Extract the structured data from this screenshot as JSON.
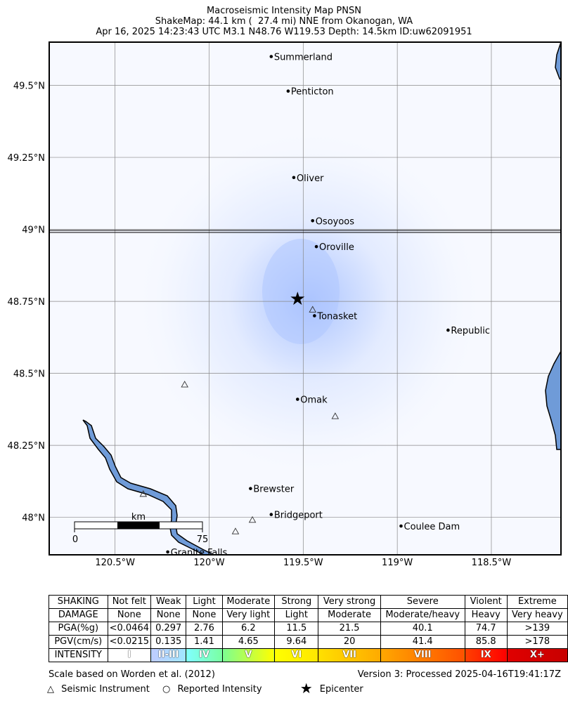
{
  "header": {
    "line1": "Macroseismic Intensity Map PNSN",
    "line2": "ShakeMap: 44.1 km (  27.4 mi) NNE from Okanogan, WA",
    "line3": "Apr 16, 2025 14:23:43 UTC M3.1 N48.76 W119.53 Depth: 14.5km ID:uw62091951"
  },
  "map": {
    "bounds": {
      "lon_min": -120.85,
      "lon_max": -118.13,
      "lat_min": 47.87,
      "lat_max": 49.65
    },
    "lat_ticks": [
      {
        "value": 49.5,
        "label": "49.5°N"
      },
      {
        "value": 49.25,
        "label": "49.25°N"
      },
      {
        "value": 49.0,
        "label": "49°N"
      },
      {
        "value": 48.75,
        "label": "48.75°N"
      },
      {
        "value": 48.5,
        "label": "48.5°N"
      },
      {
        "value": 48.25,
        "label": "48.25°N"
      },
      {
        "value": 48.0,
        "label": "48°N"
      }
    ],
    "lon_ticks": [
      {
        "value": -120.5,
        "label": "120.5°W"
      },
      {
        "value": -120.0,
        "label": "120°W"
      },
      {
        "value": -119.5,
        "label": "119.5°W"
      },
      {
        "value": -119.0,
        "label": "119°W"
      },
      {
        "value": -118.5,
        "label": "118.5°W"
      }
    ],
    "cities": [
      {
        "name": "Summerland",
        "lon": -119.67,
        "lat": 49.6
      },
      {
        "name": "Penticton",
        "lon": -119.58,
        "lat": 49.48
      },
      {
        "name": "Oliver",
        "lon": -119.55,
        "lat": 49.18
      },
      {
        "name": "Osoyoos",
        "lon": -119.45,
        "lat": 49.03
      },
      {
        "name": "Oroville",
        "lon": -119.43,
        "lat": 48.94
      },
      {
        "name": "Tonasket",
        "lon": -119.44,
        "lat": 48.7
      },
      {
        "name": "Republic",
        "lon": -118.73,
        "lat": 48.65
      },
      {
        "name": "Omak",
        "lon": -119.53,
        "lat": 48.41
      },
      {
        "name": "Brewster",
        "lon": -119.78,
        "lat": 48.1
      },
      {
        "name": "Bridgeport",
        "lon": -119.67,
        "lat": 48.01
      },
      {
        "name": "Coulee Dam",
        "lon": -118.98,
        "lat": 47.97
      },
      {
        "name": "Granite Falls",
        "lon": -120.22,
        "lat": 47.88
      }
    ],
    "stations": [
      {
        "lon": -120.13,
        "lat": 48.46
      },
      {
        "lon": -119.33,
        "lat": 48.35
      },
      {
        "lon": -120.35,
        "lat": 48.08
      },
      {
        "lon": -119.77,
        "lat": 47.99
      },
      {
        "lon": -119.86,
        "lat": 47.95
      },
      {
        "lon": -119.45,
        "lat": 48.72
      }
    ],
    "epicenter": {
      "lon": -119.53,
      "lat": 48.76
    },
    "scale_bar": {
      "unit": "km",
      "start_label": "0",
      "end_label": "75"
    },
    "colors": {
      "water": "#6f9bd8",
      "water_edge": "#000000",
      "grid": "#888888",
      "border": "#000000",
      "background": "#f7f9ff",
      "shaking_core": "#a9c2ff"
    }
  },
  "legend": {
    "rows": [
      {
        "label": "SHAKING",
        "cells": [
          "Not felt",
          "Weak",
          "Light",
          "Moderate",
          "Strong",
          "Very strong",
          "Severe",
          "Violent",
          "Extreme"
        ]
      },
      {
        "label": "DAMAGE",
        "cells": [
          "None",
          "None",
          "None",
          "Very light",
          "Light",
          "Moderate",
          "Moderate/heavy",
          "Heavy",
          "Very heavy"
        ]
      },
      {
        "label": "PGA(%g)",
        "cells": [
          "<0.0464",
          "0.297",
          "2.76",
          "6.2",
          "11.5",
          "21.5",
          "40.1",
          "74.7",
          ">139"
        ]
      },
      {
        "label": "PGV(cm/s)",
        "cells": [
          "<0.0215",
          "0.135",
          "1.41",
          "4.65",
          "9.64",
          "20",
          "41.4",
          "85.8",
          ">178"
        ]
      }
    ],
    "intensity": {
      "label": "INTENSITY",
      "cells": [
        {
          "text": "I",
          "from": "#ffffff",
          "to": "#ffffff"
        },
        {
          "text": "II-III",
          "from": "#bfccff",
          "to": "#a0e6ff"
        },
        {
          "text": "IV",
          "from": "#80ffff",
          "to": "#7affa0"
        },
        {
          "text": "V",
          "from": "#7aff93",
          "to": "#ffff00"
        },
        {
          "text": "VI",
          "from": "#ffff00",
          "to": "#ffe600"
        },
        {
          "text": "VII",
          "from": "#ffe000",
          "to": "#ffaa00"
        },
        {
          "text": "VIII",
          "from": "#ffa800",
          "to": "#ff5000"
        },
        {
          "text": "IX",
          "from": "#ff4000",
          "to": "#ff0000"
        },
        {
          "text": "X+",
          "from": "#e00000",
          "to": "#c80000"
        }
      ]
    }
  },
  "footer": {
    "scale_note": "Scale based on Worden et al. (2012)",
    "version": "Version 3: Processed 2025-04-16T19:41:17Z",
    "seismic_label": "Seismic Instrument",
    "reported_label": "Reported Intensity",
    "epicenter_label": "Epicenter",
    "seismic_symbol": "△",
    "reported_symbol": "○",
    "epicenter_symbol": "★"
  }
}
